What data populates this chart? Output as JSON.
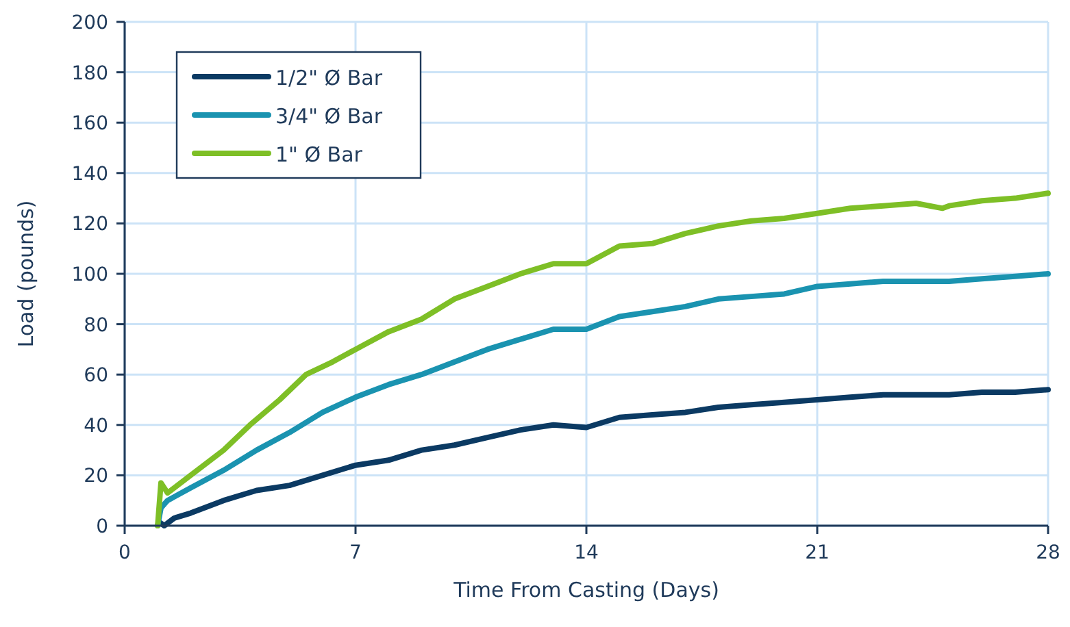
{
  "chart_data": {
    "type": "line",
    "xlabel": "Time From Casting (Days)",
    "ylabel": "Load (pounds)",
    "xlim": [
      0,
      28
    ],
    "xticks": [
      0,
      7,
      14,
      21,
      28
    ],
    "ylim": [
      0,
      200
    ],
    "yticks": [
      0,
      20,
      40,
      60,
      80,
      100,
      120,
      140,
      160,
      180,
      200
    ],
    "grid": true,
    "legend": "top left",
    "marker": "none",
    "line_style": "solid",
    "series": [
      {
        "name": "1/2\" Ø Bar",
        "color": "#0b3a63",
        "x": [
          1.1,
          1.2,
          1.5,
          2,
          3,
          4,
          5,
          6,
          7,
          8,
          9,
          10,
          11,
          12,
          13,
          14,
          15,
          16,
          17,
          18,
          19,
          20,
          21,
          22,
          23,
          24,
          25,
          26,
          27,
          28
        ],
        "values": [
          1,
          0,
          3,
          5,
          10,
          14,
          16,
          20,
          24,
          26,
          30,
          32,
          35,
          38,
          40,
          39,
          43,
          44,
          45,
          47,
          48,
          49,
          50,
          51,
          52,
          52,
          52,
          53,
          53,
          54
        ]
      },
      {
        "name": "3/4\" Ø Bar",
        "color": "#1a93b0",
        "x": [
          1.0,
          1.1,
          1.3,
          2,
          3,
          4,
          5,
          6,
          7,
          8,
          9,
          10,
          11,
          12,
          13,
          14,
          15,
          16,
          17,
          18,
          19,
          20,
          21,
          22,
          23,
          24,
          25,
          26,
          27,
          28
        ],
        "values": [
          0,
          7,
          10,
          15,
          22,
          30,
          37,
          45,
          51,
          56,
          60,
          65,
          70,
          74,
          78,
          78,
          83,
          85,
          87,
          90,
          91,
          92,
          95,
          96,
          97,
          97,
          97,
          98,
          99,
          100
        ]
      },
      {
        "name": "1\" Ø Bar",
        "color": "#7ebf26",
        "x": [
          1.0,
          1.1,
          1.3,
          2,
          3,
          3.8,
          4.7,
          5.5,
          6.3,
          7,
          8,
          9,
          10,
          11,
          12,
          13,
          14,
          15,
          16,
          17,
          18,
          19,
          20,
          21,
          22,
          23,
          24,
          24.8,
          25,
          26,
          27,
          28
        ],
        "values": [
          0,
          17,
          13,
          20,
          30,
          40,
          50,
          60,
          65,
          70,
          77,
          82,
          90,
          95,
          100,
          104,
          104,
          111,
          112,
          116,
          119,
          121,
          122,
          124,
          126,
          127,
          128,
          126,
          127,
          129,
          130,
          132
        ]
      }
    ]
  }
}
